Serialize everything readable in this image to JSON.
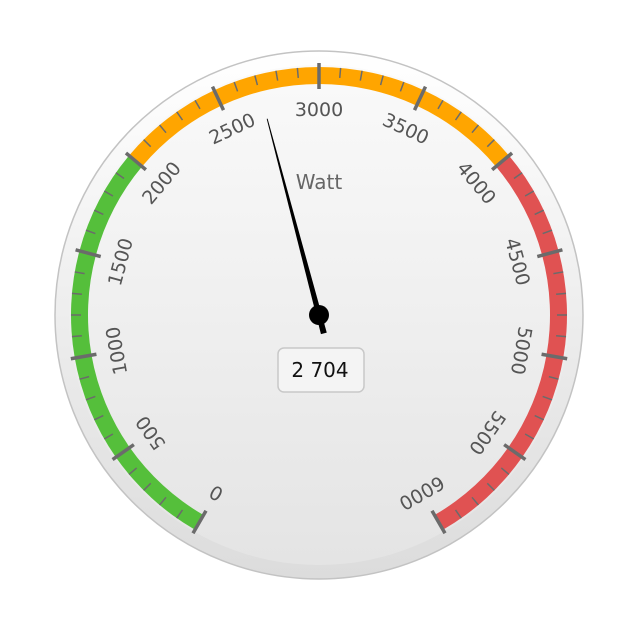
{
  "chart_data": {
    "type": "gauge",
    "title": "",
    "unit": "Watt",
    "min": 0,
    "max": 6000,
    "value": 2704,
    "value_display": "2 704",
    "tick_labels": [
      "0",
      "500",
      "1000",
      "1500",
      "2000",
      "2500",
      "3000",
      "3500",
      "4000",
      "4500",
      "5000",
      "5500",
      "6000"
    ],
    "major_step": 500,
    "minor_step": 100,
    "bands": [
      {
        "from": 0,
        "to": 2000,
        "color": "#55BF3B"
      },
      {
        "from": 2000,
        "to": 4000,
        "color": "#FFA500"
      },
      {
        "from": 4000,
        "to": 6000,
        "color": "#E05252"
      }
    ]
  }
}
